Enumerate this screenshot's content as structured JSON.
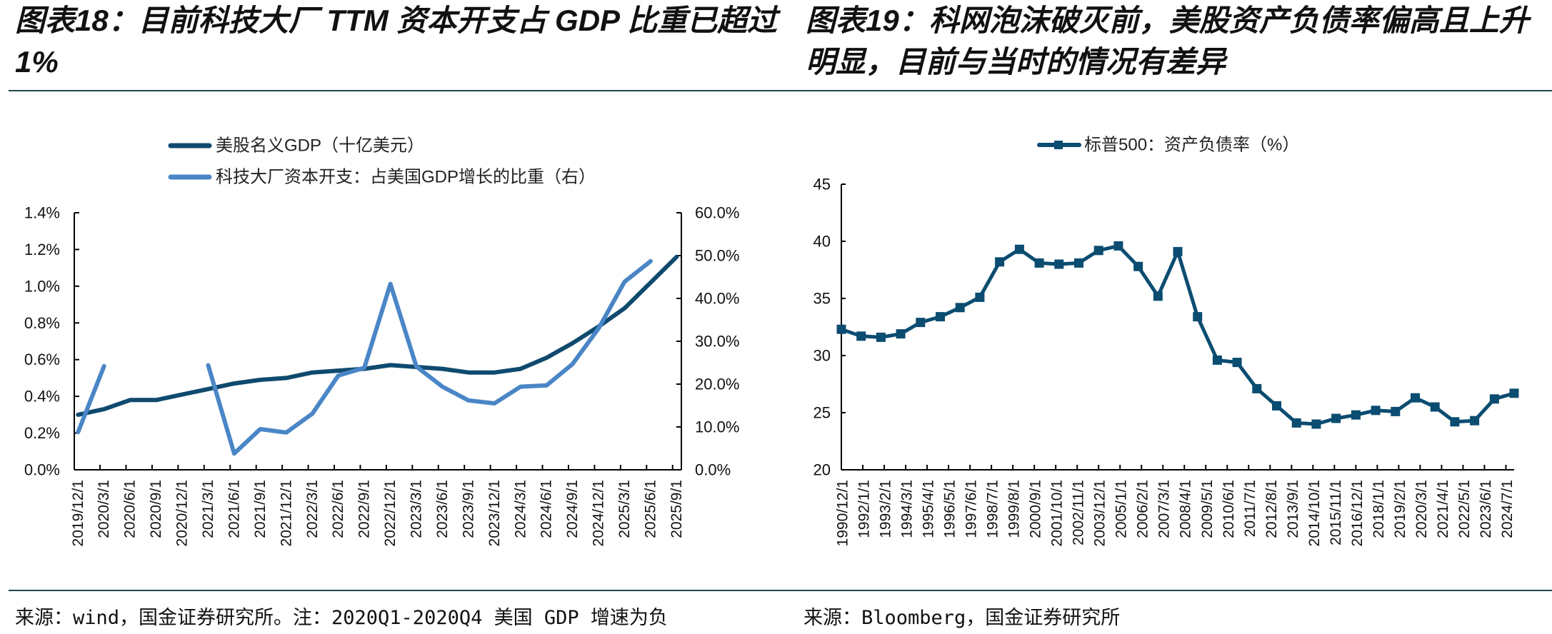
{
  "left_panel": {
    "title_lines": [
      "图表18：目前科技大厂 TTM 资本开支占 GDP 比重已超过",
      "1%"
    ],
    "source": "来源：wind，国金证券研究所。注：2020Q1-2020Q4 美国 GDP 增速为负"
  },
  "right_panel": {
    "title_lines": [
      "图表19：科网泡沫破灭前，美股资产负债率偏高且上升",
      "明显，目前与当时的情况有差异"
    ],
    "source": "来源：Bloomberg，国金证券研究所"
  },
  "chart_data": [
    {
      "type": "line",
      "title": "",
      "xlabel": "",
      "grid": false,
      "legend_position": "top-center",
      "categories": [
        "2019/12/1",
        "2020/3/1",
        "2020/6/1",
        "2020/9/1",
        "2020/12/1",
        "2021/3/1",
        "2021/6/1",
        "2021/9/1",
        "2021/12/1",
        "2022/3/1",
        "2022/6/1",
        "2022/9/1",
        "2022/12/1",
        "2023/3/1",
        "2023/6/1",
        "2023/9/1",
        "2023/12/1",
        "2024/3/1",
        "2024/6/1",
        "2024/9/1",
        "2024/12/1",
        "2025/3/1",
        "2025/6/1",
        "2025/9/1"
      ],
      "series": [
        {
          "name": "美股名义GDP（十亿美元）",
          "axis": "left",
          "unit": "%",
          "color": "#0f4a6e",
          "values": [
            0.3,
            0.33,
            0.38,
            0.38,
            0.41,
            0.44,
            0.47,
            0.49,
            0.5,
            0.53,
            0.54,
            0.55,
            0.57,
            0.56,
            0.55,
            0.53,
            0.53,
            0.55,
            0.61,
            0.69,
            0.78,
            0.88,
            1.02,
            1.16
          ]
        },
        {
          "name": "科技大厂资本开支：占美国GDP增长的比重（右）",
          "axis": "right",
          "unit": "%",
          "color": "#4a86c6",
          "values": [
            8.8,
            24.2,
            null,
            null,
            null,
            24.4,
            3.8,
            9.5,
            8.7,
            13.1,
            22.0,
            23.8,
            43.4,
            24.1,
            19.4,
            16.2,
            15.5,
            19.4,
            19.7,
            24.7,
            33.0,
            43.9,
            48.7,
            null
          ]
        }
      ],
      "y_left": {
        "min": 0,
        "max": 1.4,
        "step": 0.2,
        "tick_labels": [
          "0.0%",
          "0.2%",
          "0.4%",
          "0.6%",
          "0.8%",
          "1.0%",
          "1.2%",
          "1.4%"
        ]
      },
      "y_right": {
        "min": 0,
        "max": 60,
        "step": 10,
        "tick_labels": [
          "0.0%",
          "10.0%",
          "20.0%",
          "30.0%",
          "40.0%",
          "50.0%",
          "60.0%"
        ]
      }
    },
    {
      "type": "line",
      "title": "",
      "xlabel": "",
      "ylabel": "",
      "grid": false,
      "legend_position": "top-center",
      "x_range": [
        "1990/12/1",
        "2024/12/1"
      ],
      "x_tick_labels": [
        "1990/12/1",
        "1992/1/1",
        "1993/2/1",
        "1994/3/1",
        "1995/4/1",
        "1996/5/1",
        "1997/6/1",
        "1998/7/1",
        "1999/8/1",
        "2000/9/1",
        "2001/10/1",
        "2002/11/1",
        "2003/12/1",
        "2005/1/1",
        "2006/2/1",
        "2007/3/1",
        "2008/4/1",
        "2009/5/1",
        "2010/6/1",
        "2011/7/1",
        "2012/8/1",
        "2013/9/1",
        "2014/10/1",
        "2015/11/1",
        "2016/12/1",
        "2018/1/1",
        "2019/2/1",
        "2020/3/1",
        "2021/4/1",
        "2022/5/1",
        "2023/6/1",
        "2024/7/1"
      ],
      "series": [
        {
          "name": "标普500：资产负债率（%）",
          "color": "#0b4c71",
          "marker": "square",
          "x": [
            "1990/12",
            "1991/12",
            "1992/12",
            "1993/12",
            "1994/12",
            "1995/12",
            "1996/12",
            "1997/12",
            "1998/12",
            "1999/12",
            "2000/12",
            "2001/12",
            "2002/12",
            "2003/12",
            "2004/12",
            "2005/12",
            "2006/12",
            "2007/12",
            "2008/12",
            "2009/12",
            "2010/12",
            "2011/12",
            "2012/12",
            "2013/12",
            "2014/12",
            "2015/12",
            "2016/12",
            "2017/12",
            "2018/12",
            "2019/12",
            "2020/12",
            "2021/12",
            "2022/12",
            "2023/12",
            "2024/12"
          ],
          "values": [
            32.3,
            31.7,
            31.6,
            31.9,
            32.9,
            33.4,
            34.2,
            35.1,
            38.2,
            39.3,
            38.1,
            38.0,
            38.1,
            39.2,
            39.6,
            37.8,
            35.2,
            39.1,
            33.4,
            29.6,
            29.4,
            27.1,
            25.6,
            24.1,
            24.0,
            24.5,
            24.8,
            25.2,
            25.1,
            26.3,
            25.5,
            24.2,
            24.3,
            26.2,
            26.7
          ]
        }
      ],
      "y": {
        "min": 20,
        "max": 45,
        "step": 5,
        "tick_labels": [
          "20",
          "25",
          "30",
          "35",
          "40",
          "45"
        ]
      }
    }
  ]
}
